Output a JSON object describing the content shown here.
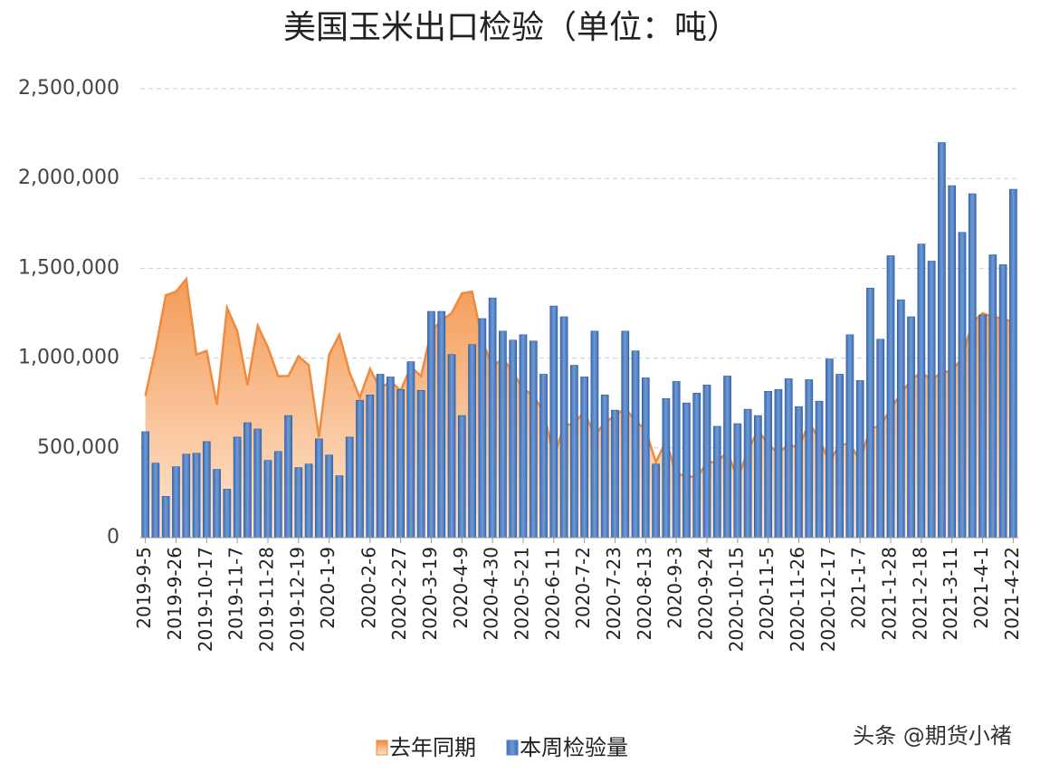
{
  "chart_data": {
    "type": "bar",
    "title": "美国玉米出口检验（单位：吨）",
    "categories": [
      "2019-9-5",
      null,
      null,
      "2019-9-26",
      null,
      null,
      "2019-10-17",
      null,
      null,
      "2019-11-7",
      null,
      null,
      "2019-11-28",
      null,
      null,
      "2019-12-19",
      null,
      null,
      "2020-1-9",
      null,
      null,
      null,
      "2020-2-6",
      null,
      null,
      "2020-2-27",
      null,
      null,
      "2020-3-19",
      null,
      null,
      "2020-4-9",
      null,
      null,
      "2020-4-30",
      null,
      null,
      "2020-5-21",
      null,
      null,
      "2020-6-11",
      null,
      null,
      "2020-7-2",
      null,
      null,
      "2020-7-23",
      null,
      null,
      "2020-8-13",
      null,
      null,
      "2020-9-3",
      null,
      null,
      "2020-9-24",
      null,
      null,
      "2020-10-15",
      null,
      null,
      "2020-11-5",
      null,
      null,
      "2020-11-26",
      null,
      null,
      "2020-12-17",
      null,
      null,
      "2021-1-7",
      null,
      null,
      "2021-1-28",
      null,
      null,
      "2021-2-18",
      null,
      null,
      "2021-3-11",
      null,
      null,
      "2021-4-1",
      null,
      null,
      "2021-4-22"
    ],
    "series": [
      {
        "name": "去年同期",
        "type": "area",
        "color": "#f08a3c",
        "values": [
          790000,
          1050000,
          1350000,
          1370000,
          1440000,
          1020000,
          1040000,
          740000,
          1280000,
          1150000,
          850000,
          1180000,
          1060000,
          900000,
          900000,
          1010000,
          960000,
          560000,
          1020000,
          1130000,
          920000,
          780000,
          940000,
          830000,
          870000,
          820000,
          950000,
          900000,
          1150000,
          1210000,
          1250000,
          1360000,
          1370000,
          1100000,
          950000,
          1000000,
          920000,
          830000,
          790000,
          700000,
          450000,
          620000,
          640000,
          700000,
          570000,
          640000,
          680000,
          720000,
          650000,
          600000,
          420000,
          540000,
          350000,
          350000,
          330000,
          420000,
          420000,
          480000,
          330000,
          480000,
          600000,
          520000,
          470000,
          520000,
          500000,
          640000,
          550000,
          420000,
          520000,
          520000,
          430000,
          610000,
          620000,
          720000,
          800000,
          880000,
          920000,
          880000,
          920000,
          930000,
          1000000,
          1200000,
          1250000,
          1230000,
          1220000,
          1200000
        ]
      },
      {
        "name": "本周检验量",
        "type": "bar",
        "color": "#4a7cc0",
        "values": [
          590000,
          415000,
          230000,
          395000,
          465000,
          470000,
          535000,
          380000,
          270000,
          560000,
          640000,
          605000,
          430000,
          480000,
          680000,
          390000,
          410000,
          550000,
          460000,
          345000,
          560000,
          765000,
          795000,
          910000,
          895000,
          825000,
          980000,
          820000,
          1260000,
          1260000,
          1020000,
          680000,
          1075000,
          1220000,
          1335000,
          1150000,
          1100000,
          1130000,
          1095000,
          910000,
          1290000,
          1230000,
          960000,
          895000,
          1150000,
          795000,
          710000,
          1150000,
          1040000,
          890000,
          410000,
          775000,
          870000,
          750000,
          805000,
          850000,
          620000,
          900000,
          635000,
          715000,
          680000,
          815000,
          825000,
          885000,
          730000,
          880000,
          760000,
          995000,
          910000,
          1130000,
          875000,
          1390000,
          1105000,
          1570000,
          1325000,
          1230000,
          1635000,
          1540000,
          2200000,
          1960000,
          1700000,
          1915000,
          1240000,
          1575000,
          1520000,
          1940000
        ]
      }
    ],
    "ylim": [
      0,
      2500000
    ],
    "yticks": [
      0,
      {
        "value": 500000,
        "label": "500,000"
      },
      {
        "value": 1000000,
        "label": "1,000,000"
      },
      {
        "value": 1500000,
        "label": "1,500,000"
      },
      {
        "value": 2000000,
        "label": "2,000,000"
      },
      {
        "value": 2500000,
        "label": "2,500,000"
      }
    ],
    "grid": true,
    "legend": "bottom",
    "watermark": "头条 @期货小褚"
  }
}
